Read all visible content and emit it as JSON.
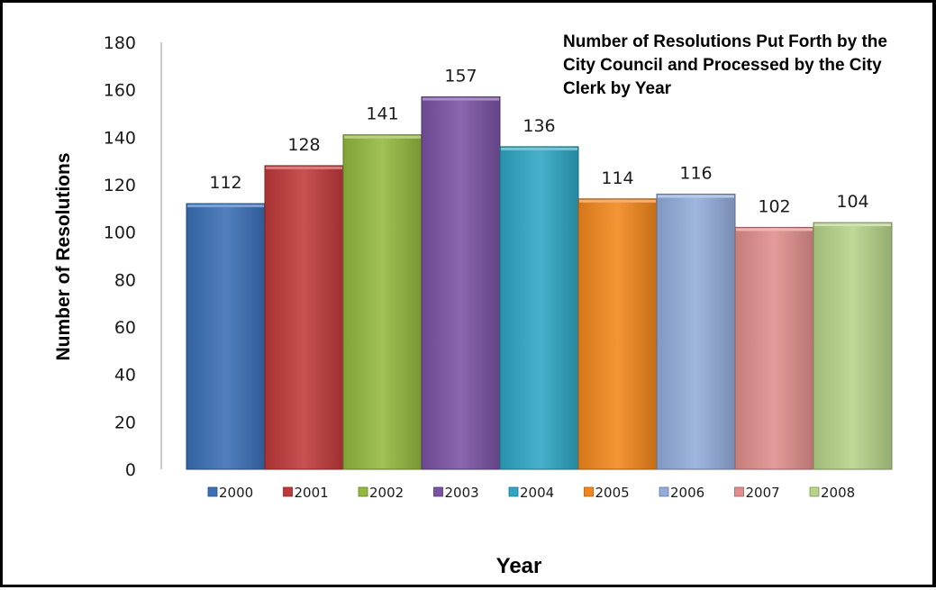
{
  "chart_data": {
    "type": "bar",
    "title_lines": [
      "Number of Resolutions Put Forth by the",
      "City Council and Processed by the City",
      "Clerk by Year"
    ],
    "xlabel": "Year",
    "ylabel": "Number of Resolutions",
    "ylim": [
      0,
      180
    ],
    "yticks": [
      0,
      20,
      40,
      60,
      80,
      100,
      120,
      140,
      160,
      180
    ],
    "grid": false,
    "legend_position": "bottom",
    "categories": [
      "2000",
      "2001",
      "2002",
      "2003",
      "2004",
      "2005",
      "2006",
      "2007",
      "2008"
    ],
    "values": [
      112,
      128,
      141,
      157,
      136,
      114,
      116,
      102,
      104
    ],
    "colors": [
      "#3a6fb6",
      "#c0393a",
      "#93b83e",
      "#7a52a4",
      "#2ea6c4",
      "#f2861b",
      "#92acdb",
      "#e08e8c",
      "#b6d388"
    ]
  }
}
